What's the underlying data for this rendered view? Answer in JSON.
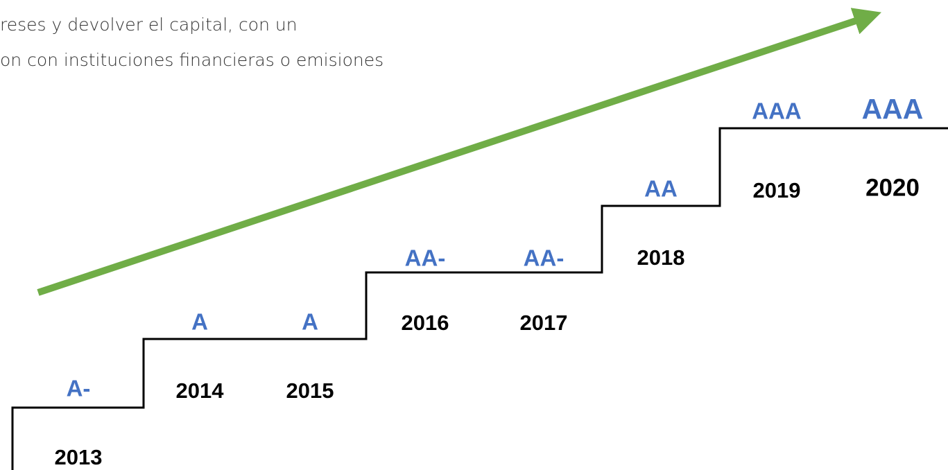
{
  "text_lines": [
    "reses y devolver el capital, con un",
    "on con instituciones financieras o emisiones"
  ],
  "steps": [
    {
      "year": "2013",
      "rating": "A-"
    },
    {
      "year": "2014",
      "rating": "A"
    },
    {
      "year": "2015",
      "rating": "A"
    },
    {
      "year": "2016",
      "rating": "AA-"
    },
    {
      "year": "2017",
      "rating": "AA-"
    },
    {
      "year": "2018",
      "rating": "AA"
    },
    {
      "year": "2019",
      "rating": "AAA"
    },
    {
      "year": "2020",
      "rating": "AAA"
    }
  ]
}
